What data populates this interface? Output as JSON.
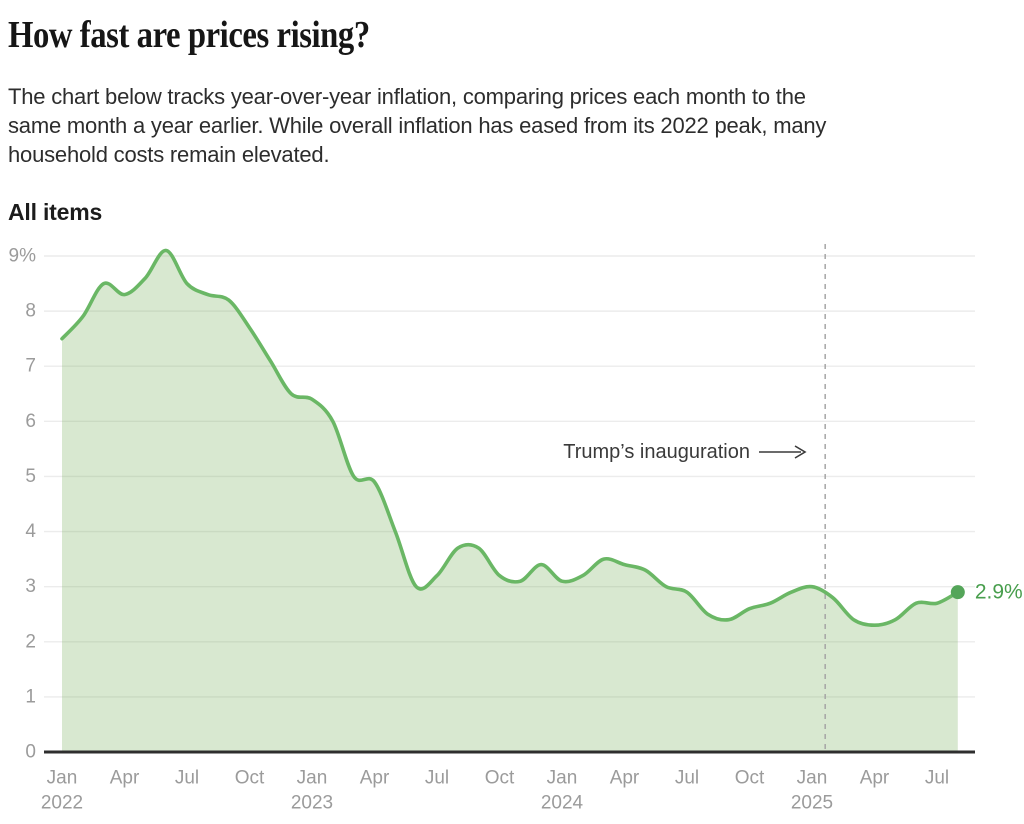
{
  "page": {
    "title": "How fast are prices rising?",
    "description_lines": [
      "The chart below tracks year-over-year inflation, comparing prices each month to the",
      "same month a year earlier. While overall inflation has eased from its 2022 peak, many",
      "household costs remain elevated."
    ]
  },
  "chart_data": {
    "type": "area",
    "title": "All items",
    "unit": "percent year-over-year",
    "x": [
      "2022-01",
      "2022-02",
      "2022-03",
      "2022-04",
      "2022-05",
      "2022-06",
      "2022-07",
      "2022-08",
      "2022-09",
      "2022-10",
      "2022-11",
      "2022-12",
      "2023-01",
      "2023-02",
      "2023-03",
      "2023-04",
      "2023-05",
      "2023-06",
      "2023-07",
      "2023-08",
      "2023-09",
      "2023-10",
      "2023-11",
      "2023-12",
      "2024-01",
      "2024-02",
      "2024-03",
      "2024-04",
      "2024-05",
      "2024-06",
      "2024-07",
      "2024-08",
      "2024-09",
      "2024-10",
      "2024-11",
      "2024-12",
      "2025-01",
      "2025-02",
      "2025-03",
      "2025-04",
      "2025-05",
      "2025-06",
      "2025-07",
      "2025-08"
    ],
    "values": [
      7.5,
      7.9,
      8.5,
      8.3,
      8.6,
      9.1,
      8.5,
      8.3,
      8.2,
      7.7,
      7.1,
      6.5,
      6.4,
      6.0,
      5.0,
      4.9,
      4.0,
      3.0,
      3.2,
      3.7,
      3.7,
      3.2,
      3.1,
      3.4,
      3.1,
      3.2,
      3.5,
      3.4,
      3.3,
      3.0,
      2.9,
      2.5,
      2.4,
      2.6,
      2.7,
      2.9,
      3.0,
      2.8,
      2.4,
      2.3,
      2.4,
      2.7,
      2.7,
      2.9
    ],
    "ylim": [
      0,
      9
    ],
    "yticks": [
      {
        "value": 9,
        "label": "9%"
      },
      {
        "value": 8,
        "label": "8"
      },
      {
        "value": 7,
        "label": "7"
      },
      {
        "value": 6,
        "label": "6"
      },
      {
        "value": 5,
        "label": "5"
      },
      {
        "value": 4,
        "label": "4"
      },
      {
        "value": 3,
        "label": "3"
      },
      {
        "value": 2,
        "label": "2"
      },
      {
        "value": 1,
        "label": "1"
      },
      {
        "value": 0,
        "label": "0"
      }
    ],
    "xticks": [
      {
        "m": 0,
        "label": "Jan",
        "year": "2022"
      },
      {
        "m": 3,
        "label": "Apr"
      },
      {
        "m": 6,
        "label": "Jul"
      },
      {
        "m": 9,
        "label": "Oct"
      },
      {
        "m": 12,
        "label": "Jan",
        "year": "2023"
      },
      {
        "m": 15,
        "label": "Apr"
      },
      {
        "m": 18,
        "label": "Jul"
      },
      {
        "m": 21,
        "label": "Oct"
      },
      {
        "m": 24,
        "label": "Jan",
        "year": "2024"
      },
      {
        "m": 27,
        "label": "Apr"
      },
      {
        "m": 30,
        "label": "Jul"
      },
      {
        "m": 33,
        "label": "Oct"
      },
      {
        "m": 36,
        "label": "Jan",
        "year": "2025"
      },
      {
        "m": 39,
        "label": "Apr"
      },
      {
        "m": 42,
        "label": "Jul"
      }
    ],
    "annotation": {
      "text": "Trump’s inauguration",
      "date": "2025-01-20"
    },
    "end_point": {
      "month": "2025-08",
      "value": 2.9,
      "label": "2.9%"
    },
    "grid": true,
    "legend": "none",
    "colors": {
      "line": "#6ab765",
      "fill": "rgba(111,170,81,0.27)",
      "dot": "#54a559",
      "end_label": "#489e4d",
      "grid": "#ececec",
      "axis": "#2e2e2e",
      "tick": "#9b9b9b",
      "dashed": "#a6a6a6",
      "annotation": "#3a3a3a"
    }
  }
}
